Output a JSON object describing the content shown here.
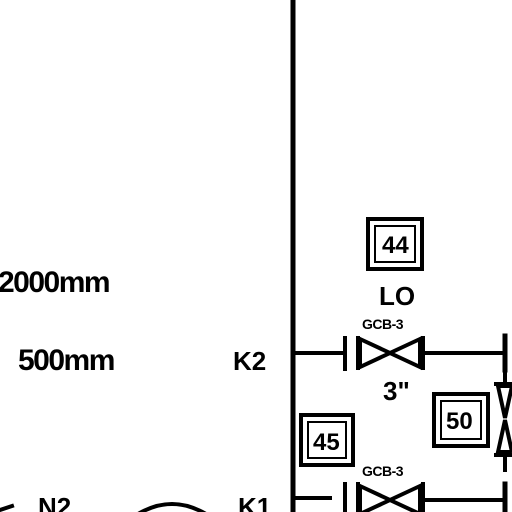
{
  "dimensions": {
    "upper": "2000mm",
    "lower": "500mm"
  },
  "connection_labels": {
    "k2": "K2",
    "k1": "K1",
    "n2": "N2"
  },
  "instruments": [
    {
      "tag": "44",
      "sub": "LO"
    },
    {
      "tag": "45"
    },
    {
      "tag": "50"
    }
  ],
  "valves": [
    {
      "tag": "GCB-3",
      "size": "3\""
    },
    {
      "tag": "GCB-3"
    }
  ]
}
